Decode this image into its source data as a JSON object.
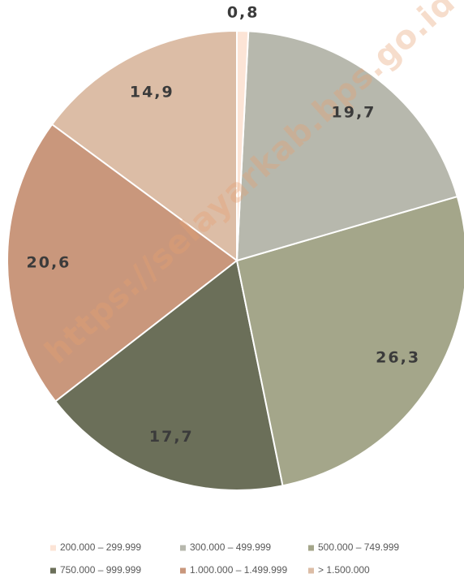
{
  "watermark": "https://selayarkab.bps.go.id",
  "chart_data": {
    "type": "pie",
    "categories": [
      "200.000 – 299.999",
      "300.000 – 499.999",
      "500.000 – 749.999",
      "750.000 – 999.999",
      "1.000.000 – 1.499.999",
      "> 1.500.000"
    ],
    "values": [
      0.8,
      19.7,
      26.3,
      17.7,
      20.6,
      14.9
    ],
    "value_labels": [
      "0,8",
      "19,7",
      "26,3",
      "17,7",
      "20,6",
      "14,9"
    ],
    "colors": [
      "#fce4d6",
      "#b7b8ad",
      "#a4a68a",
      "#6b6f59",
      "#c9977c",
      "#dcbda6"
    ],
    "legend": "bottom"
  }
}
